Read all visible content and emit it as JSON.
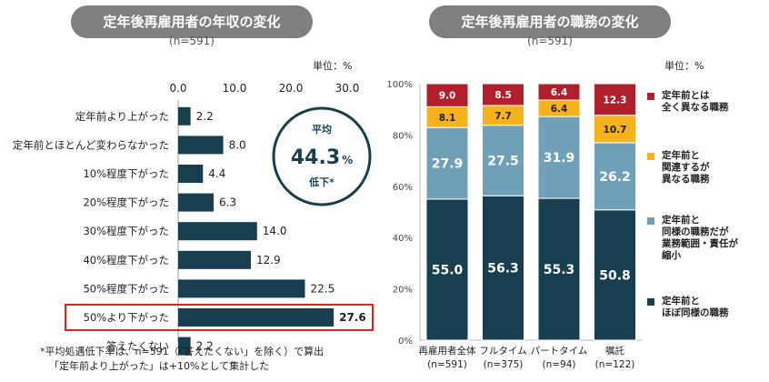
{
  "chart_data": [
    {
      "type": "bar",
      "orientation": "horizontal",
      "title": "定年後再雇用者の年収の変化",
      "subtitle": "(n=591)",
      "unit": "単位：%",
      "categories": [
        "定年前より上がった",
        "定年前とほとんど変わらなかった",
        "10%程度下がった",
        "20%程度下がった",
        "30%程度下がった",
        "40%程度下がった",
        "50%程度下がった",
        "50%より下がった",
        "答えたくない"
      ],
      "values": [
        2.2,
        8.0,
        4.4,
        6.3,
        14.0,
        12.9,
        22.5,
        27.6,
        2.2
      ],
      "value_labels": [
        "2.2",
        "8.0",
        "4.4",
        "6.3",
        "14.0",
        "12.9",
        "22.5",
        "27.6",
        "2.2"
      ],
      "xlim": [
        0,
        30
      ],
      "ticks": [
        "0.0",
        "10.0",
        "20.0",
        "30.0"
      ],
      "highlight_index": 7,
      "bar_color": "#173f4f",
      "highlight_color": "#e0241c",
      "callout": {
        "top": "平均",
        "value": "44.3",
        "suffix": "%",
        "bottom": "低下*"
      },
      "footnote": [
        "*平均処遇低下率は、n=591（「答えたくない」を除く）で算出",
        "「定年前より上がった」は+10%として集計した"
      ]
    },
    {
      "type": "stacked-bar",
      "title": "定年後再雇用者の職務の変化",
      "subtitle": "(n=591)",
      "unit": "単位：%",
      "categories": [
        "再雇用者全体",
        "フルタイム",
        "パートタイム",
        "嘱託"
      ],
      "category_n": [
        "(n=591)",
        "(n=375)",
        "(n=94)",
        "(n=122)"
      ],
      "ylim": [
        0,
        100
      ],
      "ticks": [
        "0%",
        "20%",
        "40%",
        "60%",
        "80%",
        "100%"
      ],
      "series": [
        {
          "name": "定年前と\nほぼ同様の職務",
          "color": "#173f4f",
          "values": [
            55.0,
            56.3,
            55.3,
            50.8
          ],
          "labels": [
            "55.0",
            "56.3",
            "55.3",
            "50.8"
          ]
        },
        {
          "name": "定年前と\n同様の職務だが\n業務範囲・責任が\n縮小",
          "color": "#6fa0b7",
          "values": [
            27.9,
            27.5,
            31.9,
            26.2
          ],
          "labels": [
            "27.9",
            "27.5",
            "31.9",
            "26.2"
          ]
        },
        {
          "name": "定年前と\n関連するが\n異なる職務",
          "color": "#f6b21a",
          "values": [
            8.1,
            7.7,
            6.4,
            10.7
          ],
          "labels": [
            "8.1",
            "7.7",
            "6.4",
            "10.7"
          ]
        },
        {
          "name": "定年前とは\n全く異なる職務",
          "color": "#b01f2b",
          "values": [
            9.0,
            8.5,
            6.4,
            12.3
          ],
          "labels": [
            "9.0",
            "8.5",
            "6.4",
            "12.3"
          ]
        }
      ]
    }
  ]
}
